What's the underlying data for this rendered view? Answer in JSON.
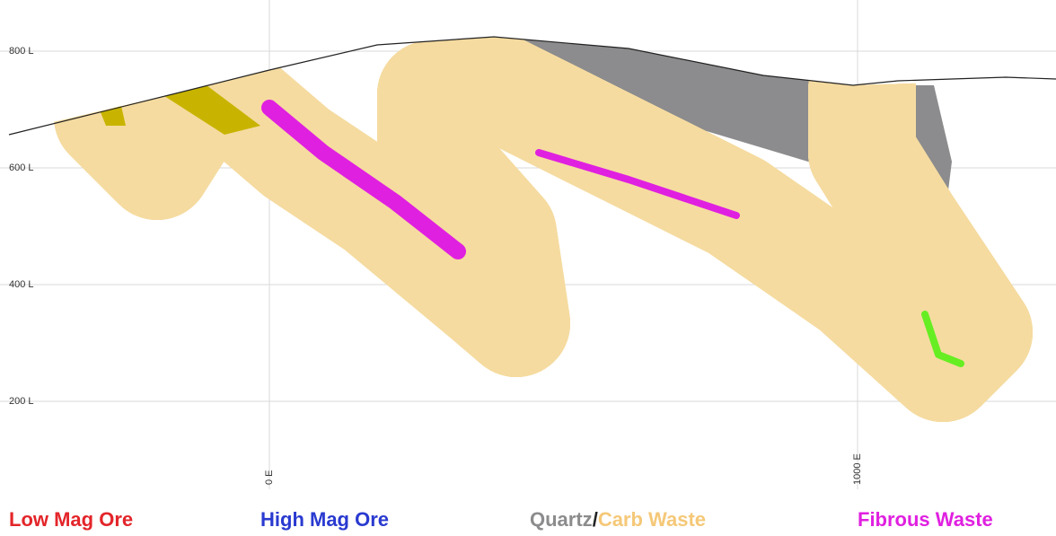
{
  "level_labels": [
    "800 L",
    "600 L",
    "400 L",
    "200 L"
  ],
  "easting_labels": [
    "0 E",
    "1000 E"
  ],
  "legend": [
    "Low Mag Ore",
    "High Mag Ore",
    "Quartz",
    "/",
    "Carb Waste",
    "Fibrous Waste"
  ]
}
